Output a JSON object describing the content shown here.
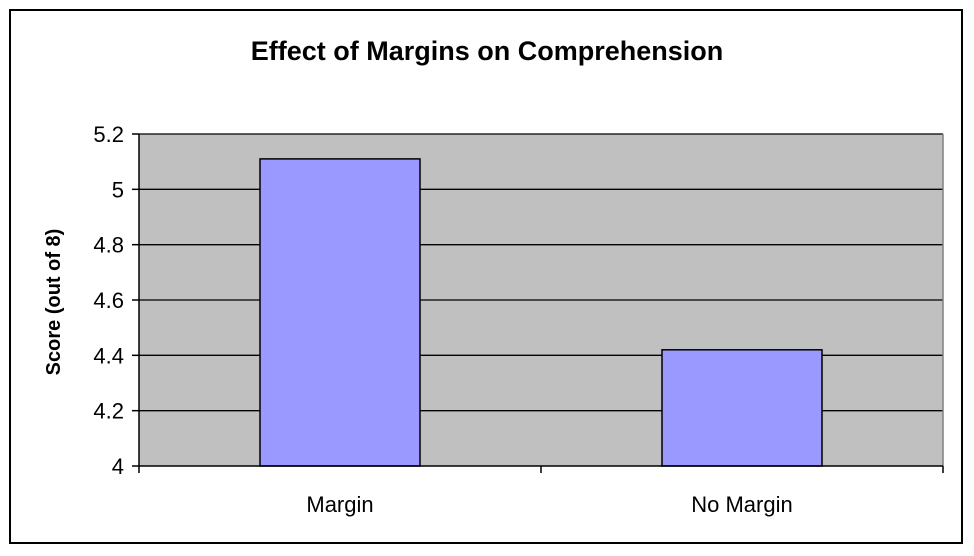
{
  "chart_data": {
    "type": "bar",
    "title": "Effect of Margins on Comprehension",
    "xlabel": "",
    "ylabel": "Score (out of 8)",
    "categories": [
      "Margin",
      "No Margin"
    ],
    "values": [
      5.11,
      4.42
    ],
    "ylim": [
      4,
      5.2
    ],
    "yticks": [
      "4",
      "4.2",
      "4.4",
      "4.6",
      "4.8",
      "5",
      "5.2"
    ],
    "yticks_values": [
      4,
      4.2,
      4.4,
      4.6,
      4.8,
      5,
      5.2
    ],
    "grid": true,
    "legend": "none",
    "bar_color": "#9999ff",
    "plot_background": "#c0c0c0"
  }
}
